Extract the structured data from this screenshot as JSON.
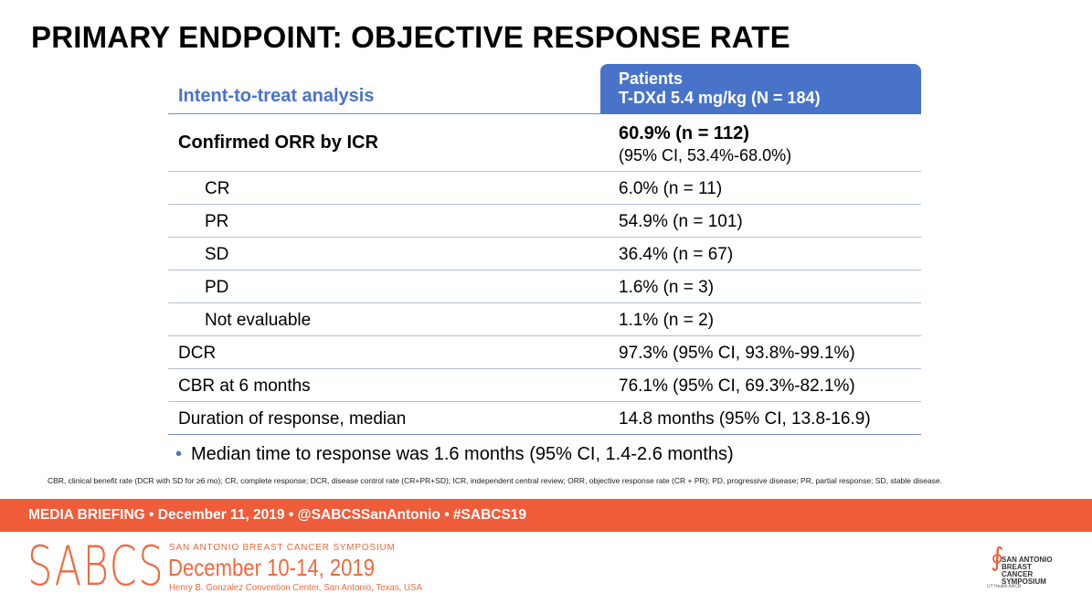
{
  "title": "PRIMARY ENDPOINT: OBJECTIVE RESPONSE RATE",
  "table": {
    "header_left": "Intent-to-treat analysis",
    "header_right_line1": "Patients",
    "header_right_line2": "T-DXd 5.4 mg/kg (N = 184)",
    "main_label": "Confirmed ORR by ICR",
    "main_value": "60.9% (n = 112)",
    "main_ci": "(95% CI, 53.4%-68.0%)",
    "rows": [
      {
        "label": "CR",
        "value": "6.0% (n = 11)"
      },
      {
        "label": "PR",
        "value": "54.9% (n = 101)"
      },
      {
        "label": "SD",
        "value": "36.4% (n = 67)"
      },
      {
        "label": "PD",
        "value": "1.6% (n = 3)"
      },
      {
        "label": "Not evaluable",
        "value": "1.1% (n = 2)"
      },
      {
        "label": "DCR",
        "value": "97.3% (95% CI, 93.8%-99.1%)"
      },
      {
        "label": "CBR at 6 months",
        "value": "76.1% (95% CI, 69.3%-82.1%)"
      },
      {
        "label": "Duration of response, median",
        "value": "14.8 months (95% CI, 13.8-16.9)"
      }
    ]
  },
  "bullet_mark": "•",
  "bullet": "Median time to response was 1.6 months (95% CI, 1.4-2.6 months)",
  "footnote": "CBR, clinical benefit rate (DCR with SD for ≥6 mo); CR, complete response; DCR, disease control rate (CR+PR+SD); ICR, independent central review; ORR, objective response rate (CR + PR); PD, progressive disease; PR, partial response; SD, stable disease.",
  "band_text": "MEDIA BRIEFING  •  December 11, 2019  •  @SABCSSanAntonio  •  #SABCS19",
  "logo": "SABCS",
  "symposium_name": "SAN ANTONIO BREAST CANCER SYMPOSIUM",
  "symposium_dates": "December 10-14, 2019",
  "symposium_venue": "Henry B. Gonzalez Convention Center, San Antonio, Texas, USA",
  "right_logo_line1": "SAN ANTONIO",
  "right_logo_line2": "BREAST CANCER",
  "right_logo_line3": "SYMPOSIUM",
  "right_logo_sponsors": "UT Health  AACR",
  "colors": {
    "accent_blue": "#4873c8",
    "band_orange": "#ee5c3a",
    "logo_orange": "#ee6a3e"
  }
}
